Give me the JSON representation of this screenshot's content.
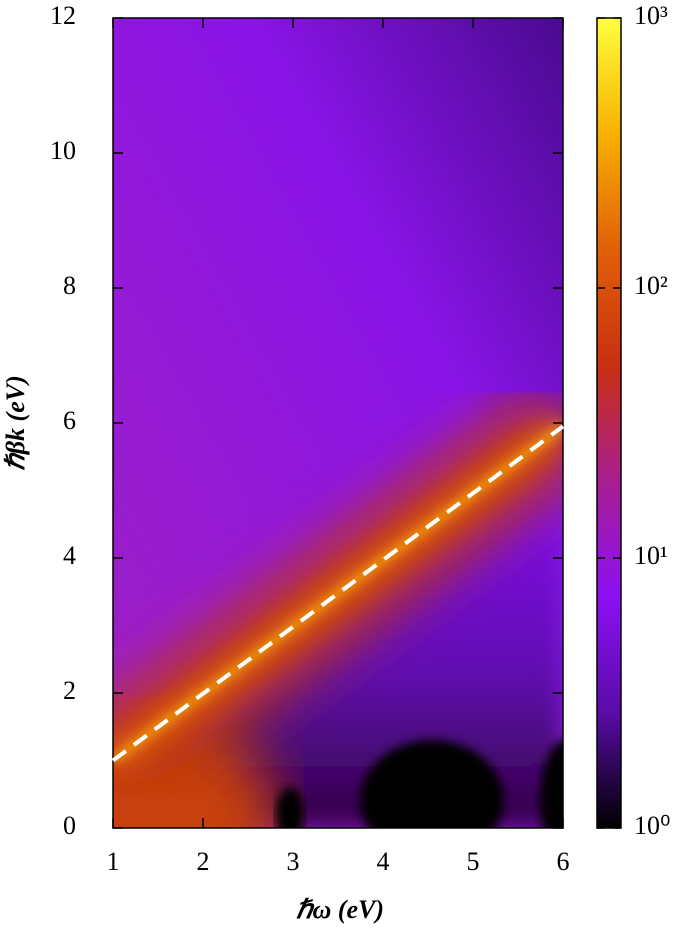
{
  "chart_data": {
    "type": "heatmap",
    "xlabel": "ℏω (eV)",
    "ylabel": "ℏβk (eV)",
    "xlim": [
      1,
      6
    ],
    "ylim": [
      0,
      12
    ],
    "xticks": [
      1,
      2,
      3,
      4,
      5,
      6
    ],
    "yticks": [
      0,
      2,
      4,
      6,
      8,
      10,
      12
    ],
    "colorbar": {
      "scale": "log",
      "lim": [
        1,
        1000
      ],
      "ticks": [
        {
          "value": 1,
          "label": "10⁰"
        },
        {
          "value": 10,
          "label": "10¹"
        },
        {
          "value": 100,
          "label": "10²"
        },
        {
          "value": 1000,
          "label": "10³"
        }
      ],
      "colors": [
        "#000000",
        "#5a0ca8",
        "#8c10f4",
        "#a81e90",
        "#c83010",
        "#e06008",
        "#f8b000",
        "#ffff40"
      ]
    },
    "series": [
      {
        "x": [
          1,
          6
        ],
        "y": [
          1,
          5.95
        ],
        "color": "#ffffff",
        "dashed": true
      }
    ]
  }
}
